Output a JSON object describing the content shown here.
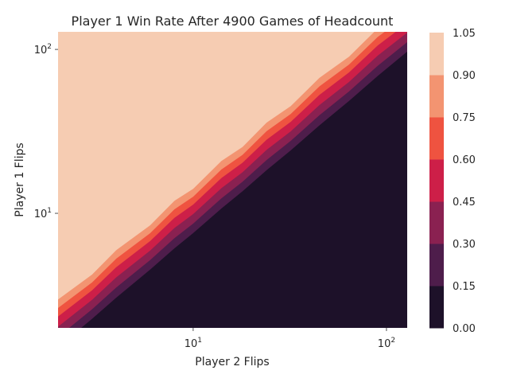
{
  "chart_data": {
    "type": "heatmap",
    "subtype": "filled-contour",
    "title": "Player 1 Win Rate After 4900 Games of Headcount",
    "xlabel": "Player 2 Flips",
    "ylabel": "Player 1 Flips",
    "x_scale": "log",
    "y_scale": "log",
    "xlim": [
      2,
      128
    ],
    "ylim": [
      2,
      128
    ],
    "x_ticks": [
      {
        "value": 10,
        "base": "10",
        "exp": "1"
      },
      {
        "value": 100,
        "base": "10",
        "exp": "2"
      }
    ],
    "y_ticks": [
      {
        "value": 10,
        "base": "10",
        "exp": "1"
      },
      {
        "value": 100,
        "base": "10",
        "exp": "2"
      }
    ],
    "grid": false,
    "colorbar": {
      "levels": [
        0.0,
        0.15,
        0.3,
        0.45,
        0.6,
        0.75,
        0.9,
        1.05
      ],
      "labels": [
        "0.00",
        "0.15",
        "0.30",
        "0.45",
        "0.60",
        "0.75",
        "0.90",
        "1.05"
      ],
      "colors": [
        "#1d1129",
        "#4e1d4b",
        "#8a2151",
        "#cd1f48",
        "#ef5340",
        "#f39471",
        "#f6ccb2"
      ]
    },
    "band_offsets_log10_ratio": [
      -0.12,
      -0.06,
      0.0,
      0.06,
      0.11,
      0.16
    ],
    "diagonal_x": [
      2,
      3,
      4,
      6,
      8,
      10,
      14,
      18,
      24,
      32,
      45,
      64,
      90,
      128
    ]
  }
}
